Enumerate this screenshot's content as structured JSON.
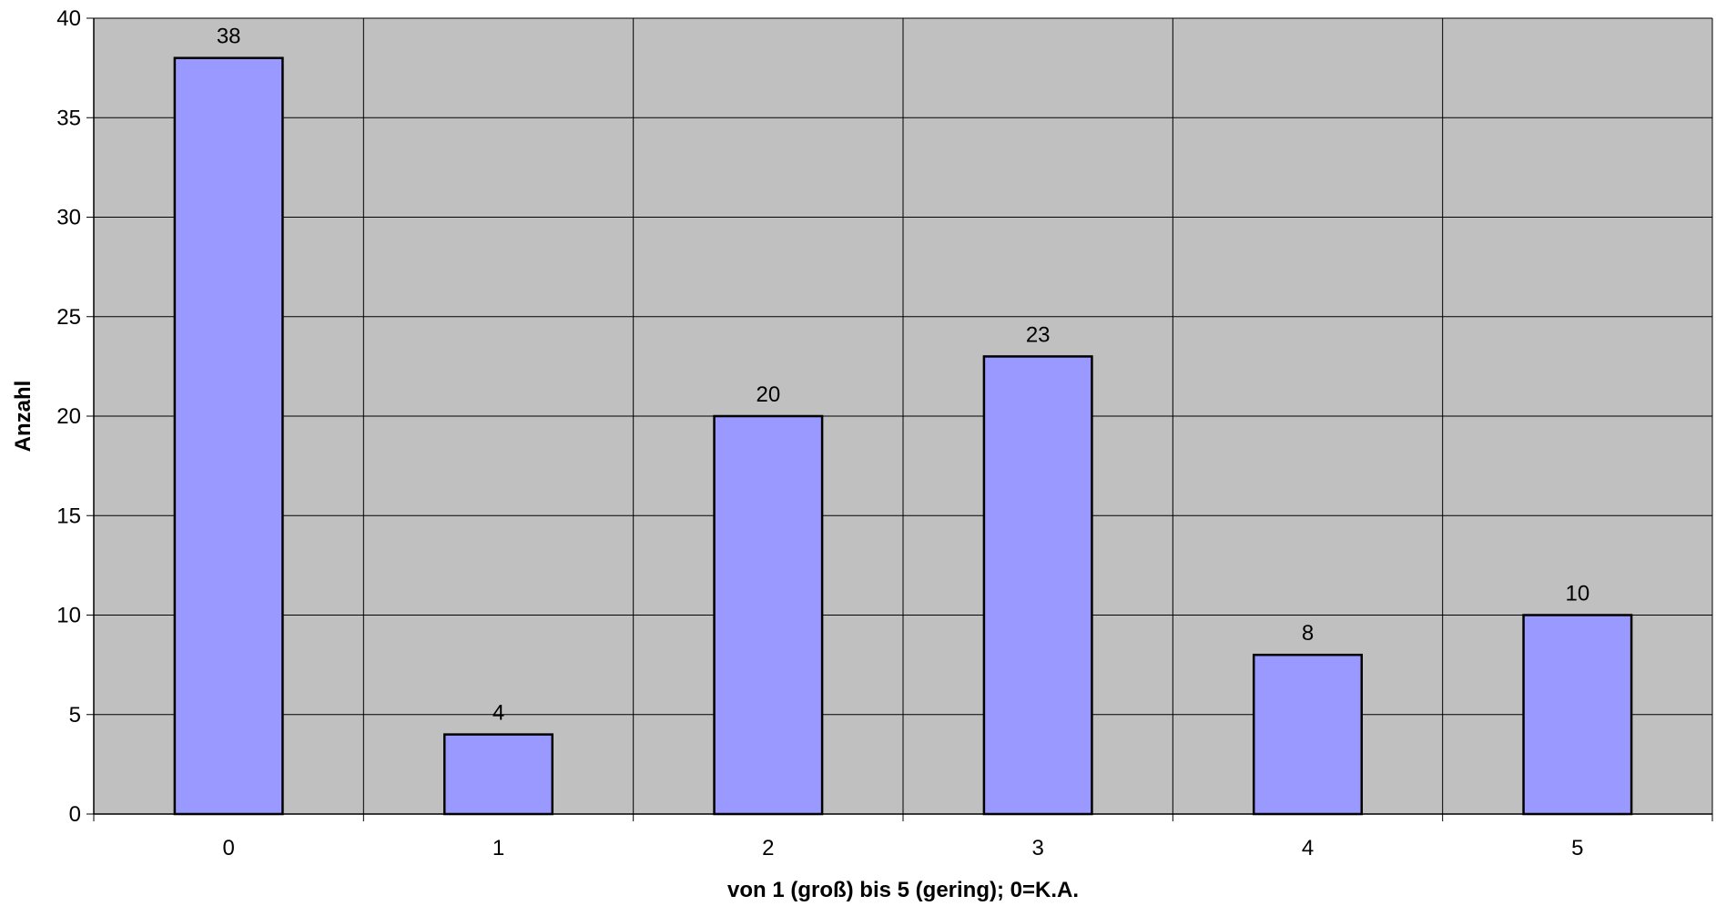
{
  "chart_data": {
    "type": "bar",
    "categories": [
      "0",
      "1",
      "2",
      "3",
      "4",
      "5"
    ],
    "values": [
      38,
      4,
      20,
      23,
      8,
      10
    ],
    "data_labels": [
      "38",
      "4",
      "20",
      "23",
      "8",
      "10"
    ],
    "title": "",
    "xlabel": "von 1 (groß) bis 5 (gering); 0=K.A.",
    "ylabel": "Anzahl",
    "ylim": [
      0,
      40
    ],
    "yticks": [
      0,
      5,
      10,
      15,
      20,
      25,
      30,
      35,
      40
    ],
    "ytick_labels": [
      "0",
      "5",
      "10",
      "15",
      "20",
      "25",
      "30",
      "35",
      "40"
    ],
    "grid": true,
    "legend": "none",
    "colors": {
      "plot_background": "#c0c0c0",
      "bar_fill": "#9999ff",
      "bar_stroke": "#000000",
      "grid": "#000000"
    }
  }
}
